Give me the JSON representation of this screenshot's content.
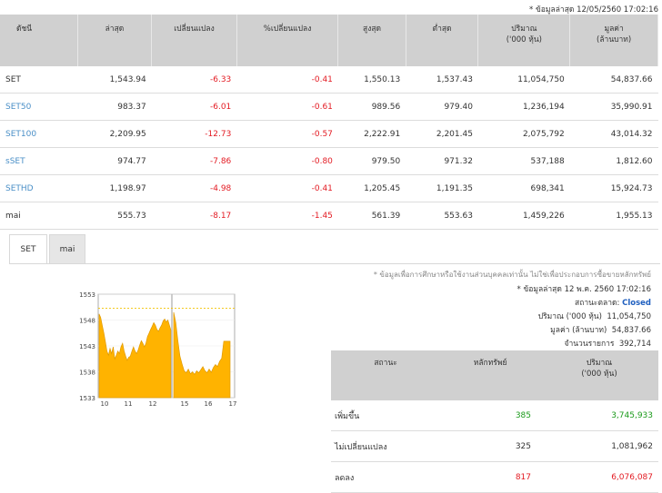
{
  "top_note": "* ข้อมูลล่าสุด 12/05/2560 17:02:16",
  "index_table": {
    "headers": [
      "ดัชนี",
      "ล่าสุด",
      "เปลี่ยนแปลง",
      "%เปลี่ยนแปลง",
      "สูงสุด",
      "ต่ำสุด",
      "ปริมาณ\n('000 หุ้น)",
      "มูลค่า\n(ล้านบาท)"
    ],
    "rows": [
      {
        "name": "SET",
        "last": "1,543.94",
        "change": "-6.33",
        "pct": "-0.41",
        "high": "1,550.13",
        "low": "1,537.43",
        "volume": "11,054,750",
        "value": "54,837.66",
        "link": false
      },
      {
        "name": "SET50",
        "last": "983.37",
        "change": "-6.01",
        "pct": "-0.61",
        "high": "989.56",
        "low": "979.40",
        "volume": "1,236,194",
        "value": "35,990.91",
        "link": true
      },
      {
        "name": "SET100",
        "last": "2,209.95",
        "change": "-12.73",
        "pct": "-0.57",
        "high": "2,222.91",
        "low": "2,201.45",
        "volume": "2,075,792",
        "value": "43,014.32",
        "link": true
      },
      {
        "name": "sSET",
        "last": "974.77",
        "change": "-7.86",
        "pct": "-0.80",
        "high": "979.50",
        "low": "971.32",
        "volume": "537,188",
        "value": "1,812.60",
        "link": true
      },
      {
        "name": "SETHD",
        "last": "1,198.97",
        "change": "-4.98",
        "pct": "-0.41",
        "high": "1,205.45",
        "low": "1,191.35",
        "volume": "698,341",
        "value": "15,924.73",
        "link": true
      },
      {
        "name": "mai",
        "last": "555.73",
        "change": "-8.17",
        "pct": "-1.45",
        "high": "561.39",
        "low": "553.63",
        "volume": "1,459,226",
        "value": "1,955.13",
        "link": false
      }
    ]
  },
  "tabs": [
    {
      "label": "SET",
      "active": true
    },
    {
      "label": "mai",
      "active": false
    }
  ],
  "info": {
    "disclaimer": "* ข้อมูลเพื่อการศึกษาหรือใช้งานส่วนบุคคลเท่านั้น ไม่ใช่เพื่อประกอบการซื้อขายหลักทรัพย์",
    "last_update": "* ข้อมูลล่าสุด 12 พ.ค. 2560 17:02:16",
    "status_label": "สถานะตลาด:",
    "status_value": "Closed",
    "volume_label": "ปริมาณ ('000 หุ้น)",
    "volume_value": "11,054,750",
    "value_label": "มูลค่า (ล้านบาท)",
    "value_value": "54,837.66",
    "trades_label": "จำนวนรายการ",
    "trades_value": "392,714"
  },
  "summary_table": {
    "headers": [
      "สถานะ",
      "หลักทรัพย์",
      "ปริมาณ\n('000 หุ้น)"
    ],
    "rows": [
      {
        "label": "เพิ่มขึ้น",
        "count": "385",
        "volume": "3,745,933",
        "color": "up"
      },
      {
        "label": "ไม่เปลี่ยนแปลง",
        "count": "325",
        "volume": "1,081,962",
        "color": "none"
      },
      {
        "label": "ลดลง",
        "count": "817",
        "volume": "6,076,087",
        "color": "down"
      }
    ]
  },
  "chart_data": {
    "type": "area",
    "y_ticks": [
      "1553",
      "1548",
      "1543",
      "1538",
      "1533"
    ],
    "x_ticks": [
      "10",
      "11",
      "12",
      "15",
      "16",
      "17"
    ],
    "ylim": [
      1533,
      1553
    ],
    "prev_close": 1550.27,
    "fill_color": "#ffb300",
    "sessions": [
      [
        1549.2,
        1548.5,
        1547.0,
        1545.5,
        1543.8,
        1542.0,
        1541.2,
        1542.5,
        1541.5,
        1542.8,
        1540.5,
        1541.2,
        1542.0,
        1541.5,
        1542.8,
        1543.5,
        1542.0,
        1541.0,
        1540.2,
        1540.8,
        1541.0,
        1542.0,
        1542.8,
        1542.0,
        1541.5,
        1542.2,
        1543.2,
        1544.0,
        1543.5,
        1542.8,
        1543.5,
        1544.8,
        1545.5,
        1546.2,
        1546.8,
        1547.5,
        1547.0,
        1546.2,
        1545.8,
        1546.5,
        1547.0,
        1547.8,
        1548.2,
        1547.6,
        1548.0,
        1547.0,
        1546.0
      ],
      [
        1549.5,
        1547.5,
        1544.0,
        1541.0,
        1539.5,
        1538.2,
        1537.8,
        1538.5,
        1537.6,
        1538.0,
        1537.5,
        1538.2,
        1537.8,
        1538.4,
        1539.0,
        1538.2,
        1537.8,
        1538.5,
        1537.9,
        1538.8,
        1539.4,
        1539.0,
        1540.0,
        1540.6,
        1543.9,
        1543.9,
        1543.9,
        1543.9
      ]
    ]
  }
}
